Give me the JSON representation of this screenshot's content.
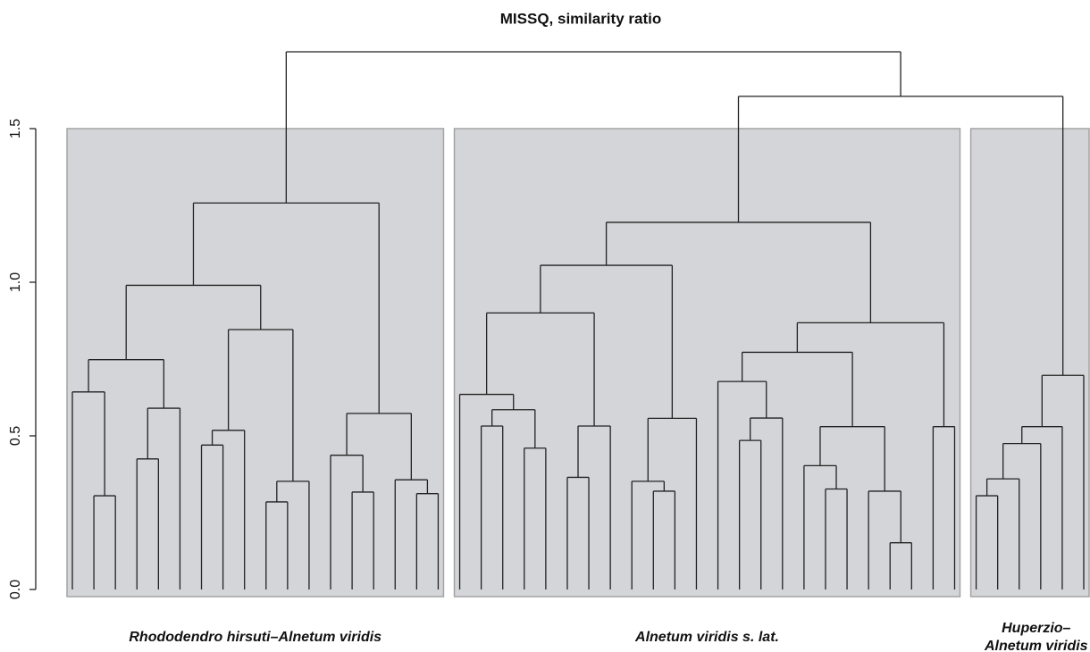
{
  "chart_data": {
    "type": "dendrogram",
    "title": "MISSQ, similarity ratio",
    "ylim": [
      0,
      1.75
    ],
    "yticks": [
      {
        "value": 0,
        "label": "0.0"
      },
      {
        "value": 0.5,
        "label": "0.5"
      },
      {
        "value": 1,
        "label": "1.0"
      },
      {
        "value": 1.5,
        "label": "1.5"
      }
    ],
    "merge": [
      [
        -2,
        -3
      ],
      [
        -1,
        1
      ],
      [
        -4,
        -5
      ],
      [
        3,
        -6
      ],
      [
        2,
        4
      ],
      [
        -7,
        -8
      ],
      [
        6,
        -9
      ],
      [
        -10,
        -11
      ],
      [
        8,
        -12
      ],
      [
        7,
        9
      ],
      [
        5,
        10
      ],
      [
        -14,
        -15
      ],
      [
        -13,
        12
      ],
      [
        -17,
        -18
      ],
      [
        -16,
        14
      ],
      [
        13,
        15
      ],
      [
        11,
        16
      ],
      [
        -20,
        -21
      ],
      [
        -22,
        -23
      ],
      [
        18,
        19
      ],
      [
        -19,
        20
      ],
      [
        -24,
        -25
      ],
      [
        22,
        -26
      ],
      [
        21,
        23
      ],
      [
        -28,
        -29
      ],
      [
        -27,
        25
      ],
      [
        26,
        -30
      ],
      [
        24,
        27
      ],
      [
        -32,
        -33
      ],
      [
        29,
        -34
      ],
      [
        -31,
        30
      ],
      [
        -36,
        -37
      ],
      [
        -35,
        32
      ],
      [
        -39,
        -40
      ],
      [
        -38,
        34
      ],
      [
        33,
        35
      ],
      [
        31,
        36
      ],
      [
        -41,
        -42
      ],
      [
        37,
        38
      ],
      [
        28,
        39
      ],
      [
        -43,
        -44
      ],
      [
        41,
        -45
      ],
      [
        42,
        -46
      ],
      [
        43,
        -47
      ],
      [
        44,
        -48
      ],
      [
        40,
        45
      ],
      [
        17,
        46
      ]
    ],
    "height": [
      0.305,
      0.643,
      0.425,
      0.59,
      0.748,
      0.47,
      0.518,
      0.285,
      0.352,
      0.846,
      0.99,
      0.317,
      0.437,
      0.312,
      0.357,
      0.573,
      1.258,
      0.532,
      0.46,
      0.585,
      0.635,
      0.365,
      0.532,
      0.9,
      0.32,
      0.352,
      0.557,
      1.055,
      0.485,
      0.558,
      0.677,
      0.327,
      0.403,
      0.152,
      0.32,
      0.53,
      0.772,
      0.53,
      0.868,
      1.195,
      0.305,
      0.36,
      0.475,
      0.53,
      0.697,
      1.605,
      1.75
    ],
    "box_height": 1.5,
    "groups": [
      {
        "label_lines": [
          "Rhododendro hirsuti–Alnetum viridis"
        ],
        "leaves": [
          1,
          18
        ]
      },
      {
        "label_lines": [
          "Alnetum viridis s. lat."
        ],
        "leaves": [
          19,
          42
        ]
      },
      {
        "label_lines": [
          "Huperzio–",
          "Alnetum viridis"
        ],
        "leaves": [
          43,
          48
        ]
      }
    ]
  }
}
